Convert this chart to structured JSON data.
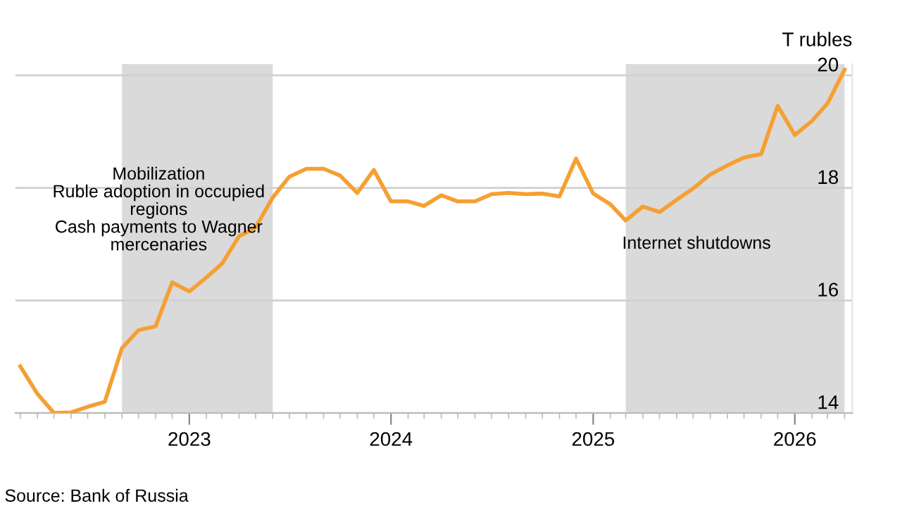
{
  "chart_data": {
    "type": "line",
    "ylabel": "T rubles",
    "x": [
      "2022-03",
      "2022-04",
      "2022-05",
      "2022-06",
      "2022-07",
      "2022-08",
      "2022-09",
      "2022-10",
      "2022-11",
      "2022-12",
      "2023-01",
      "2023-02",
      "2023-03",
      "2023-04",
      "2023-05",
      "2023-06",
      "2023-07",
      "2023-08",
      "2023-09",
      "2023-10",
      "2023-11",
      "2023-12",
      "2024-01",
      "2024-02",
      "2024-03",
      "2024-04",
      "2024-05",
      "2024-06",
      "2024-07",
      "2024-08",
      "2024-09",
      "2024-10",
      "2024-11",
      "2024-12",
      "2025-01",
      "2025-02",
      "2025-03",
      "2025-04",
      "2025-05",
      "2025-06",
      "2025-07",
      "2025-08",
      "2025-09",
      "2025-10",
      "2025-11",
      "2025-12",
      "2026-01",
      "2026-02",
      "2026-03",
      "2026-04"
    ],
    "series": [
      {
        "color": "#f5a032",
        "values": [
          14.83,
          14.34,
          14.0,
          14.01,
          14.11,
          14.2,
          15.15,
          15.47,
          15.54,
          16.32,
          16.16,
          16.41,
          16.65,
          17.14,
          17.3,
          17.83,
          18.2,
          18.34,
          18.34,
          18.22,
          17.91,
          18.32,
          17.76,
          17.76,
          17.68,
          17.87,
          17.76,
          17.76,
          17.89,
          17.91,
          17.89,
          17.9,
          17.85,
          18.52,
          17.9,
          17.71,
          17.42,
          17.67,
          17.57,
          17.79,
          17.99,
          18.24,
          18.4,
          18.54,
          18.6,
          19.46,
          18.94,
          19.19,
          19.5,
          20.1
        ]
      }
    ],
    "xlim": [
      "2022-02-20",
      "2026-04-15"
    ],
    "xticks": [
      {
        "value": "2023-01",
        "label": "2023"
      },
      {
        "value": "2024-01",
        "label": "2024"
      },
      {
        "value": "2025-01",
        "label": "2025"
      },
      {
        "value": "2026-01",
        "label": "2026"
      }
    ],
    "ylim": [
      14,
      20.2
    ],
    "yticks": [
      14,
      16,
      18,
      20
    ],
    "grid": "y",
    "bands": [
      {
        "axis": "x",
        "from": "2022-09",
        "to": "2023-06",
        "label": "Mobilization\nRuble adoption in occupied\nregions\nCash payments to Wagner\nmercenaries",
        "color": "#dadada"
      },
      {
        "axis": "x",
        "from": "2025-03",
        "to": "2026-04",
        "label": "Internet shutdowns",
        "color": "#dadada"
      }
    ],
    "annotations": [
      "Source: Bank of Russia"
    ]
  }
}
